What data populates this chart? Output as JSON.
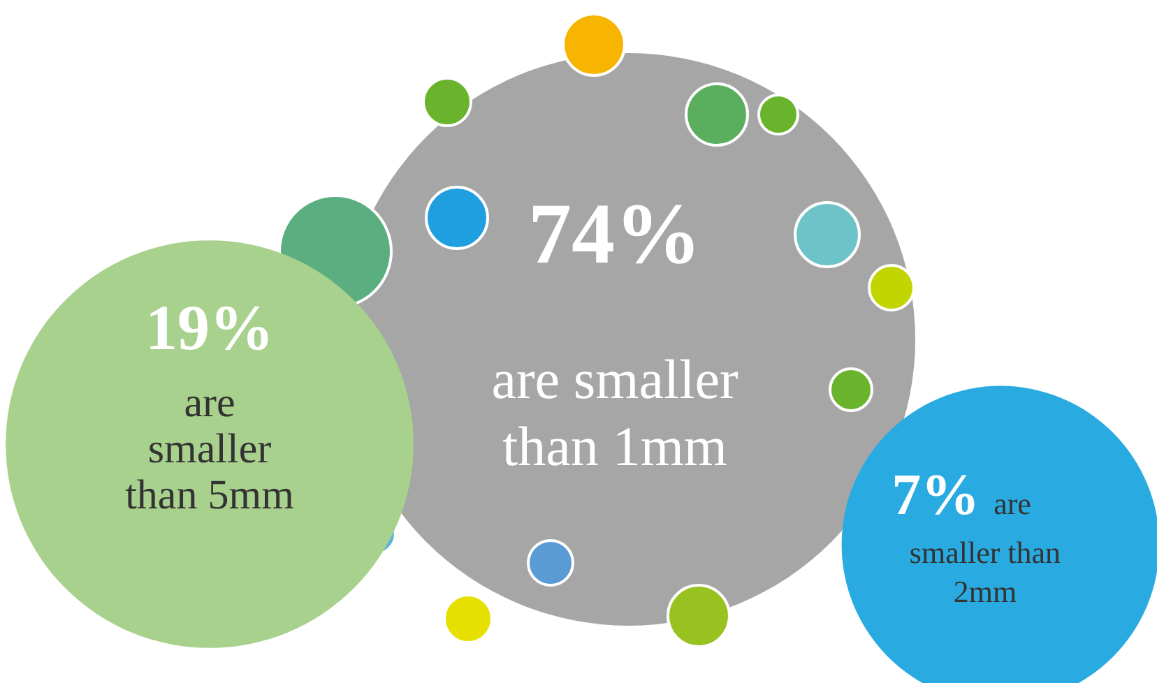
{
  "chart_data": {
    "type": "other",
    "categories": [
      "are smaller than 1mm",
      "are smaller than 5mm",
      "are smaller than 2mm"
    ],
    "values": [
      74,
      19,
      7
    ],
    "value_labels": [
      "74%",
      "19%",
      "7%"
    ],
    "colors": [
      "#a6a6a6",
      "#a9d18e",
      "#29abe2"
    ],
    "data_labels": true
  }
}
